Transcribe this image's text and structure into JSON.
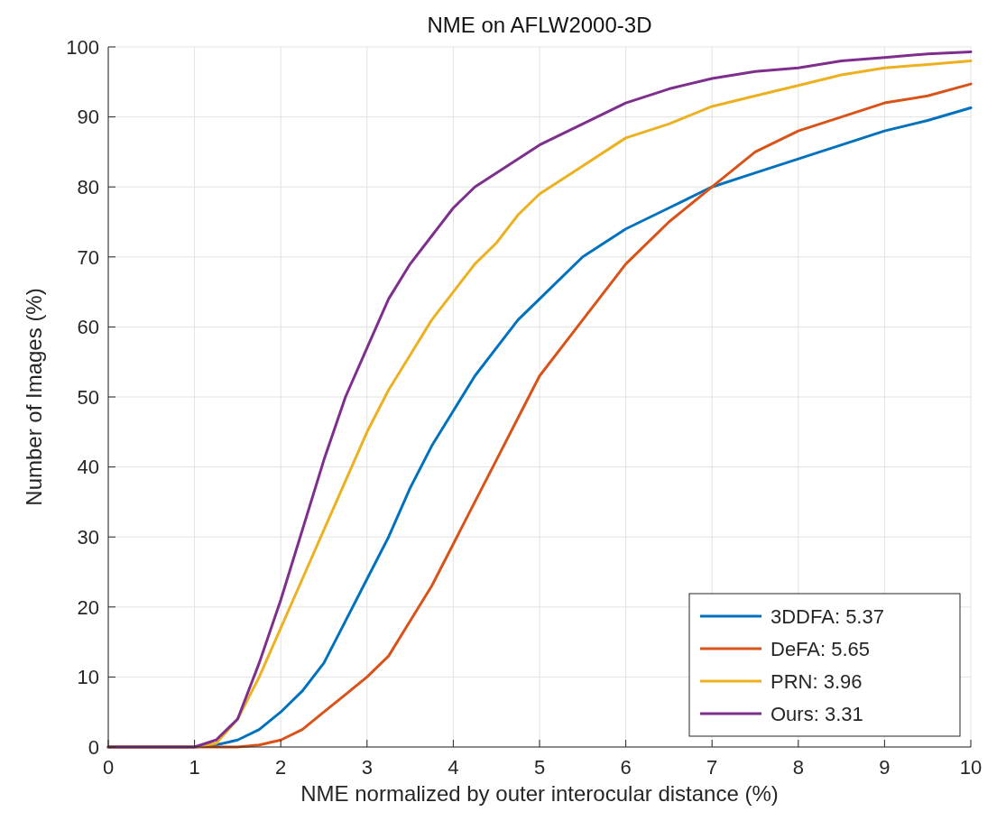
{
  "chart_data": {
    "type": "line",
    "title": "NME on AFLW2000-3D",
    "xlabel": "NME normalized by outer interocular distance (%)",
    "ylabel": "Number of Images (%)",
    "x": [
      0,
      1,
      1.25,
      1.5,
      1.75,
      2,
      2.25,
      2.5,
      2.75,
      3,
      3.25,
      3.5,
      3.75,
      4,
      4.25,
      4.5,
      4.75,
      5,
      5.5,
      6,
      6.5,
      7,
      7.5,
      8,
      8.5,
      9,
      9.5,
      10
    ],
    "series": [
      {
        "name": "3DDFA: 5.37",
        "color": "#0072bd",
        "values": [
          0,
          0,
          0.3,
          1,
          2.5,
          5,
          8,
          12,
          18,
          24,
          30,
          37,
          43,
          48,
          53,
          57,
          61,
          64,
          70,
          74,
          77,
          80,
          82,
          84,
          86,
          88,
          89.5,
          91.3
        ]
      },
      {
        "name": "DeFA: 5.65",
        "color": "#d95319",
        "values": [
          0,
          0,
          0,
          0,
          0.3,
          1,
          2.5,
          5,
          7.5,
          10,
          13,
          18,
          23,
          29,
          35,
          41,
          47,
          53,
          61,
          69,
          75,
          80,
          85,
          88,
          90,
          92,
          93,
          94.7
        ]
      },
      {
        "name": "PRN: 3.96",
        "color": "#edb120",
        "values": [
          0,
          0,
          0.5,
          4,
          10,
          17,
          24,
          31,
          38,
          45,
          51,
          56,
          61,
          65,
          69,
          72,
          76,
          79,
          83,
          87,
          89,
          91.5,
          93,
          94.5,
          96,
          97,
          97.5,
          98
        ]
      },
      {
        "name": "Ours: 3.31",
        "color": "#7e2f8e",
        "values": [
          0,
          0,
          1,
          4,
          12,
          21,
          31,
          41,
          50,
          57,
          64,
          69,
          73,
          77,
          80,
          82,
          84,
          86,
          89,
          92,
          94,
          95.5,
          96.5,
          97,
          98,
          98.5,
          99,
          99.3
        ]
      }
    ],
    "xlim": [
      0,
      10
    ],
    "xticks": [
      0,
      1,
      2,
      3,
      4,
      5,
      6,
      7,
      8,
      9,
      10
    ],
    "ylim": [
      0,
      100
    ],
    "yticks": [
      0,
      10,
      20,
      30,
      40,
      50,
      60,
      70,
      80,
      90,
      100
    ],
    "grid": true,
    "legend": "bottom right",
    "line_style": "solid"
  }
}
